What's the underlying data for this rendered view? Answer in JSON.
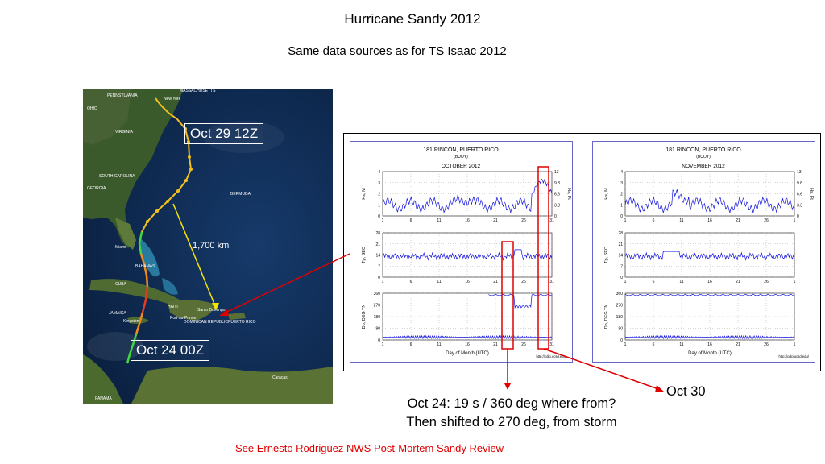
{
  "slide": {
    "title": "Hurricane Sandy 2012",
    "subtitle": "Same data sources as for TS Isaac 2012",
    "note_line1": "Oct 24: 19 s / 360 deg where from?",
    "note_line2": "Then shifted to 270 deg, from storm",
    "oct30_label": "Oct 30",
    "reference": "See Ernesto Rodriguez NWS Post-Mortem Sandy Review"
  },
  "map": {
    "callout_top": "Oct 29 12Z",
    "callout_bottom": "Oct 24 00Z",
    "distance": "1,700 km",
    "places": {
      "new_york": "New York",
      "pennsylvania": "PENNSYLVANIA",
      "massachusetts": "MASSACHUSETTS",
      "ohio": "OHIO",
      "virginia": "VIRGINIA",
      "south_carolina": "SOUTH CAROLINA",
      "georgia": "GEORGIA",
      "bermuda": "BERMUDA",
      "bahamas": "BAHAMAS",
      "cuba": "CUBA",
      "haiti": "HAITI",
      "jamaica": "JAMAICA",
      "kingston": "Kingston",
      "santo_domingo": "Santo Domingo",
      "dominican_republic": "DOMINICAN REPUBLIC",
      "puerto_rico": "PUERTO RICO",
      "port_au_prince": "Port-au-Prince",
      "miami": "Miami",
      "panama": "PANAMA",
      "caracas": "Caracas"
    }
  },
  "colors": {
    "accent_red": "#e00000",
    "plot_blue": "#1010dd",
    "track_yellow": "#f2c01e",
    "track_orange": "#f08a1e",
    "track_green": "#3fd83f",
    "ocean": "#0c2546"
  },
  "buoy_plots": [
    {
      "station": "181 RINCON, PUERTO RICO",
      "type": "(BUOY)",
      "month": "OCTOBER 2012",
      "x_ticks": [
        "1",
        "6",
        "11",
        "16",
        "21",
        "26",
        "31"
      ],
      "xlabel": "Day of Month (UTC)",
      "url": "http://cdip.ucsd.edu/",
      "hs_label": "Hs, M",
      "hs_ticks": [
        "4",
        "3",
        "2",
        "1",
        "0"
      ],
      "hs_ft_label": "Hs, Ft",
      "hs_ft_ticks": [
        "13",
        "9.8",
        "6.6",
        "3.3",
        "0"
      ],
      "tp_label": "Tp, SEC",
      "tp_ticks": [
        "28",
        "21",
        "14",
        "7",
        "0"
      ],
      "dp_label": "Dp, DEG TN",
      "dp_ticks": [
        "360",
        "270",
        "180",
        "90",
        "0"
      ]
    },
    {
      "station": "181 RINCON, PUERTO RICO",
      "type": "(BUOY)",
      "month": "NOVEMBER 2012",
      "x_ticks": [
        "1",
        "6",
        "11",
        "16",
        "21",
        "26",
        "1"
      ],
      "xlabel": "Day of Month (UTC)",
      "url": "http://cdip.ucsd.edu/",
      "hs_label": "Hs, M",
      "hs_ticks": [
        "4",
        "3",
        "2",
        "1",
        "0"
      ],
      "hs_ft_label": "Hs, Ft",
      "hs_ft_ticks": [
        "13",
        "9.8",
        "6.6",
        "3.3",
        "0"
      ],
      "tp_label": "Tp, SEC",
      "tp_ticks": [
        "28",
        "21",
        "14",
        "7",
        "0"
      ],
      "dp_label": "Dp, DEG TN",
      "dp_ticks": [
        "360",
        "270",
        "180",
        "90",
        "0"
      ]
    }
  ]
}
